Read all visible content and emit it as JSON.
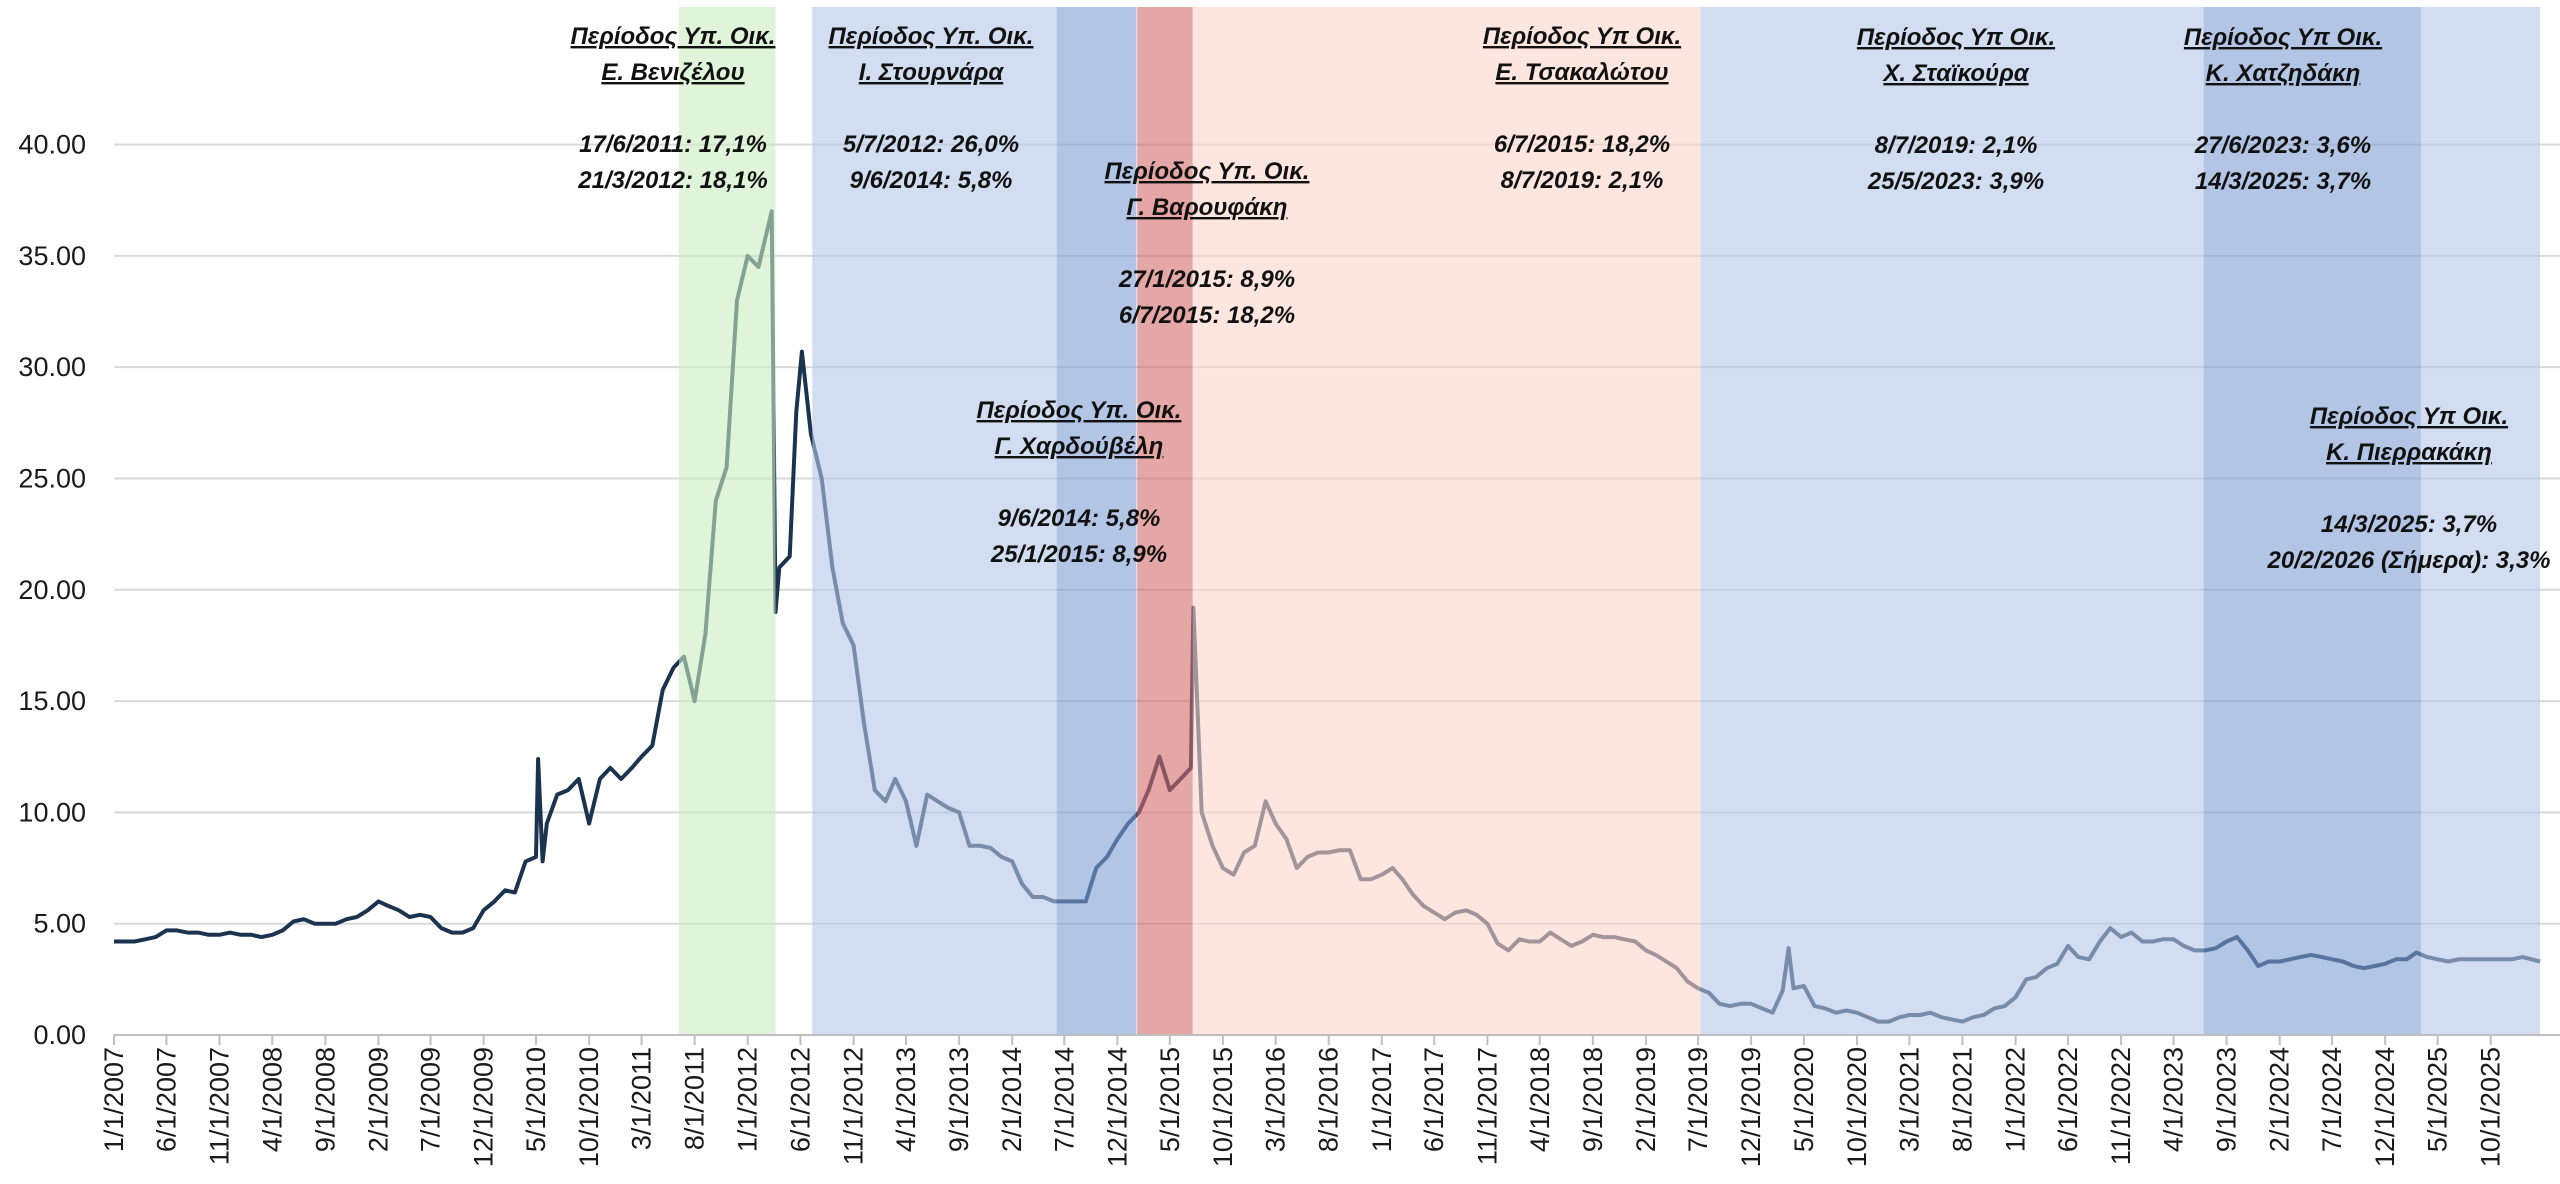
{
  "chart_data": {
    "type": "line",
    "color": "#1c3350",
    "grid": true,
    "ylim": [
      0,
      46
    ],
    "yticks": [
      {
        "value": 0,
        "label": "0.00"
      },
      {
        "value": 5,
        "label": "5.00"
      },
      {
        "value": 10,
        "label": "10.00"
      },
      {
        "value": 15,
        "label": "15.00"
      },
      {
        "value": 20,
        "label": "20.00"
      },
      {
        "value": 25,
        "label": "25.00"
      },
      {
        "value": 30,
        "label": "30.00"
      },
      {
        "value": 35,
        "label": "35.00"
      },
      {
        "value": 40,
        "label": "40.00"
      }
    ],
    "xlim": [
      "1/1/2007",
      "2/20/2026"
    ],
    "xticks": [
      "1/1/2007",
      "6/1/2007",
      "11/1/2007",
      "4/1/2008",
      "9/1/2008",
      "2/1/2009",
      "7/1/2009",
      "12/1/2009",
      "5/1/2010",
      "10/1/2010",
      "3/1/2011",
      "8/1/2011",
      "1/1/2012",
      "6/1/2012",
      "11/1/2012",
      "4/1/2013",
      "9/1/2013",
      "2/1/2014",
      "7/1/2014",
      "12/1/2014",
      "5/1/2015",
      "10/1/2015",
      "3/1/2016",
      "8/1/2016",
      "1/1/2017",
      "6/1/2017",
      "11/1/2017",
      "4/1/2018",
      "9/1/2018",
      "2/1/2019",
      "7/1/2019",
      "12/1/2019",
      "5/1/2020",
      "10/1/2020",
      "3/1/2021",
      "8/1/2021",
      "1/1/2022",
      "6/1/2022",
      "11/1/2022",
      "4/1/2023",
      "9/1/2023",
      "2/1/2024",
      "7/1/2024",
      "12/1/2024",
      "5/1/2025",
      "10/1/2025"
    ],
    "x": [
      "1/1/2007",
      "2/1/2007",
      "3/1/2007",
      "4/1/2007",
      "5/1/2007",
      "6/1/2007",
      "7/1/2007",
      "8/1/2007",
      "9/1/2007",
      "10/1/2007",
      "11/1/2007",
      "12/1/2007",
      "1/1/2008",
      "2/1/2008",
      "3/1/2008",
      "4/1/2008",
      "5/1/2008",
      "6/1/2008",
      "7/1/2008",
      "8/1/2008",
      "9/1/2008",
      "10/1/2008",
      "11/1/2008",
      "12/1/2008",
      "1/1/2009",
      "2/1/2009",
      "3/1/2009",
      "4/1/2009",
      "5/1/2009",
      "6/1/2009",
      "7/1/2009",
      "8/1/2009",
      "9/1/2009",
      "10/1/2009",
      "11/1/2009",
      "12/1/2009",
      "1/1/2010",
      "2/1/2010",
      "3/1/2010",
      "4/1/2010",
      "5/1/2010",
      "5/7/2010",
      "5/20/2010",
      "6/1/2010",
      "7/1/2010",
      "8/1/2010",
      "9/1/2010",
      "10/1/2010",
      "11/1/2010",
      "12/1/2010",
      "1/1/2011",
      "2/1/2011",
      "3/1/2011",
      "4/1/2011",
      "5/1/2011",
      "6/1/2011",
      "7/1/2011",
      "8/1/2011",
      "9/1/2011",
      "10/1/2011",
      "11/1/2011",
      "12/1/2011",
      "1/1/2012",
      "2/1/2012",
      "3/10/2012",
      "3/21/2012",
      "4/1/2012",
      "5/1/2012",
      "5/20/2012",
      "6/5/2012",
      "7/1/2012",
      "8/1/2012",
      "9/1/2012",
      "10/1/2012",
      "11/1/2012",
      "12/1/2012",
      "1/1/2013",
      "2/1/2013",
      "3/1/2013",
      "4/1/2013",
      "5/1/2013",
      "6/1/2013",
      "7/1/2013",
      "8/1/2013",
      "9/1/2013",
      "10/1/2013",
      "11/1/2013",
      "12/1/2013",
      "1/1/2014",
      "2/1/2014",
      "3/1/2014",
      "4/1/2014",
      "5/1/2014",
      "6/1/2014",
      "7/1/2014",
      "8/1/2014",
      "9/1/2014",
      "10/1/2014",
      "11/1/2014",
      "12/1/2014",
      "1/1/2015",
      "2/1/2015",
      "3/1/2015",
      "4/1/2015",
      "5/1/2015",
      "6/1/2015",
      "7/1/2015",
      "7/8/2015",
      "8/1/2015",
      "9/1/2015",
      "10/1/2015",
      "11/1/2015",
      "12/1/2015",
      "1/1/2016",
      "2/1/2016",
      "3/1/2016",
      "4/1/2016",
      "5/1/2016",
      "6/1/2016",
      "7/1/2016",
      "8/1/2016",
      "9/1/2016",
      "10/1/2016",
      "11/1/2016",
      "12/1/2016",
      "1/1/2017",
      "2/1/2017",
      "3/1/2017",
      "4/1/2017",
      "5/1/2017",
      "6/1/2017",
      "7/1/2017",
      "8/1/2017",
      "9/1/2017",
      "10/1/2017",
      "11/1/2017",
      "12/1/2017",
      "1/1/2018",
      "2/1/2018",
      "3/1/2018",
      "4/1/2018",
      "5/1/2018",
      "6/1/2018",
      "7/1/2018",
      "8/1/2018",
      "9/1/2018",
      "10/1/2018",
      "11/1/2018",
      "12/1/2018",
      "1/1/2019",
      "2/1/2019",
      "3/1/2019",
      "4/1/2019",
      "5/1/2019",
      "6/1/2019",
      "7/1/2019",
      "8/1/2019",
      "9/1/2019",
      "10/1/2019",
      "11/1/2019",
      "12/1/2019",
      "1/1/2020",
      "2/1/2020",
      "3/1/2020",
      "3/18/2020",
      "4/1/2020",
      "5/1/2020",
      "6/1/2020",
      "7/1/2020",
      "8/1/2020",
      "9/1/2020",
      "10/1/2020",
      "11/1/2020",
      "12/1/2020",
      "1/1/2021",
      "2/1/2021",
      "3/1/2021",
      "4/1/2021",
      "5/1/2021",
      "6/1/2021",
      "7/1/2021",
      "8/1/2021",
      "9/1/2021",
      "10/1/2021",
      "11/1/2021",
      "12/1/2021",
      "1/1/2022",
      "2/1/2022",
      "3/1/2022",
      "4/1/2022",
      "5/1/2022",
      "6/1/2022",
      "7/1/2022",
      "8/1/2022",
      "9/1/2022",
      "10/1/2022",
      "11/1/2022",
      "12/1/2022",
      "1/1/2023",
      "2/1/2023",
      "3/1/2023",
      "4/1/2023",
      "5/1/2023",
      "6/1/2023",
      "7/1/2023",
      "8/1/2023",
      "9/1/2023",
      "10/1/2023",
      "11/1/2023",
      "12/1/2023",
      "1/1/2024",
      "2/1/2024",
      "3/1/2024",
      "4/1/2024",
      "5/1/2024",
      "6/1/2024",
      "7/1/2024",
      "8/1/2024",
      "9/1/2024",
      "10/1/2024",
      "11/1/2024",
      "12/1/2024",
      "1/1/2025",
      "2/1/2025",
      "3/1/2025",
      "4/1/2025",
      "5/1/2025",
      "6/1/2025",
      "7/1/2025",
      "8/1/2025",
      "9/1/2025",
      "10/1/2025",
      "11/1/2025",
      "12/1/2025",
      "1/1/2026",
      "2/20/2026"
    ],
    "values": [
      4.2,
      4.2,
      4.2,
      4.3,
      4.4,
      4.7,
      4.7,
      4.6,
      4.6,
      4.5,
      4.5,
      4.6,
      4.5,
      4.5,
      4.4,
      4.5,
      4.7,
      5.1,
      5.2,
      5.0,
      5.0,
      5.0,
      5.2,
      5.3,
      5.6,
      6.0,
      5.8,
      5.6,
      5.3,
      5.4,
      5.3,
      4.8,
      4.6,
      4.6,
      4.8,
      5.6,
      6.0,
      6.5,
      6.4,
      7.8,
      8.0,
      12.4,
      7.8,
      9.5,
      10.8,
      11.0,
      11.5,
      9.5,
      11.5,
      12.0,
      11.5,
      12.0,
      12.5,
      13.0,
      15.5,
      16.5,
      17.0,
      15.0,
      18.0,
      24.0,
      25.5,
      33.0,
      35.0,
      34.5,
      37.0,
      19.0,
      21.0,
      21.5,
      28.0,
      30.7,
      27.0,
      25.0,
      21.0,
      18.5,
      17.5,
      14.0,
      11.0,
      10.5,
      11.5,
      10.5,
      8.5,
      10.8,
      10.5,
      10.2,
      10.0,
      8.5,
      8.5,
      8.4,
      8.0,
      7.8,
      6.8,
      6.2,
      6.2,
      6.0,
      6.0,
      6.0,
      6.0,
      7.5,
      8.0,
      8.8,
      9.5,
      10.0,
      11.0,
      12.5,
      11.0,
      11.5,
      12.0,
      19.2,
      10.0,
      8.5,
      7.5,
      7.2,
      8.2,
      8.5,
      10.5,
      9.5,
      8.8,
      7.5,
      8.0,
      8.2,
      8.2,
      8.3,
      8.3,
      7.0,
      7.0,
      7.2,
      7.5,
      7.0,
      6.3,
      5.8,
      5.5,
      5.2,
      5.5,
      5.6,
      5.4,
      5.0,
      4.1,
      3.8,
      4.3,
      4.2,
      4.2,
      4.6,
      4.3,
      4.0,
      4.2,
      4.5,
      4.4,
      4.4,
      4.3,
      4.2,
      3.8,
      3.6,
      3.3,
      3.0,
      2.4,
      2.1,
      1.9,
      1.4,
      1.3,
      1.4,
      1.4,
      1.2,
      1.0,
      2.0,
      3.9,
      2.1,
      2.2,
      1.3,
      1.2,
      1.0,
      1.1,
      1.0,
      0.8,
      0.6,
      0.6,
      0.8,
      0.9,
      0.9,
      1.0,
      0.8,
      0.7,
      0.6,
      0.8,
      0.9,
      1.2,
      1.3,
      1.7,
      2.5,
      2.6,
      3.0,
      3.2,
      4.0,
      3.5,
      3.4,
      4.2,
      4.8,
      4.4,
      4.6,
      4.2,
      4.2,
      4.3,
      4.3,
      4.0,
      3.8,
      3.8,
      3.9,
      4.2,
      4.4,
      3.8,
      3.1,
      3.3,
      3.3,
      3.4,
      3.5,
      3.6,
      3.5,
      3.4,
      3.3,
      3.1,
      3.0,
      3.1,
      3.2,
      3.4,
      3.4,
      3.7,
      3.5,
      3.4,
      3.3,
      3.4,
      3.4,
      3.4,
      3.4,
      3.4,
      3.4,
      3.5,
      3.3
    ],
    "periods": [
      {
        "title": [
          "Περίοδος Υπ. Οικ.",
          "Ε. Βενιζέλου"
        ],
        "lines": [
          "17/6/2011: 17,1%",
          "21/3/2012: 18,1%"
        ],
        "start": "6/17/2011",
        "end": "3/21/2012",
        "color": "#c9ecbf"
      },
      {
        "title": [
          "Περίοδος Υπ. Οικ.",
          "Ι. Στουρνάρα"
        ],
        "lines": [
          "5/7/2012: 26,0%",
          "9/6/2014: 5,8%"
        ],
        "start": "7/5/2012",
        "end": "6/9/2014",
        "color": "#b4c6e7"
      },
      {
        "title": [
          "Περίοδος Υπ. Οικ.",
          "Γ. Χαρδούβέλη"
        ],
        "lines": [
          "9/6/2014: 5,8%",
          "25/1/2015: 8,9%"
        ],
        "start": "6/9/2014",
        "end": "1/25/2015",
        "color": "#7f9fd3"
      },
      {
        "title": [
          "Περίοδος Υπ. Οικ.",
          "Γ. Βαρουφάκη"
        ],
        "lines": [
          "27/1/2015: 8,9%",
          "6/7/2015: 18,2%"
        ],
        "start": "1/27/2015",
        "end": "7/6/2015",
        "color": "#d46a6a"
      },
      {
        "title": [
          "Περίοδος Υπ Οικ.",
          "Ε. Τσακαλώτου"
        ],
        "lines": [
          "6/7/2015: 18,2%",
          "8/7/2019: 2,1%"
        ],
        "start": "7/6/2015",
        "end": "7/8/2019",
        "color": "#fcd5cc"
      },
      {
        "title": [
          "Περίοδος Υπ Οικ.",
          "Χ. Σταϊκούρα"
        ],
        "lines": [
          "8/7/2019: 2,1%",
          "25/5/2023: 3,9%"
        ],
        "start": "7/8/2019",
        "end": "6/27/2023",
        "color": "#b4c6e7"
      },
      {
        "title": [
          "Περίοδος Υπ Οικ.",
          "Κ. Χατζηδάκη"
        ],
        "lines": [
          "27/6/2023: 3,6%",
          "14/3/2025: 3,7%"
        ],
        "start": "6/27/2023",
        "end": "3/14/2025",
        "color": "#7f9fd3"
      },
      {
        "title": [
          "Περίοδος Υπ Οικ.",
          "Κ. Πιερρακάκη"
        ],
        "lines": [
          "14/3/2025: 3,7%",
          "20/2/2026 (Σήμερα): 3,3%"
        ],
        "start": "3/14/2025",
        "end": "2/20/2026",
        "color": "#b4c6e7"
      }
    ]
  }
}
